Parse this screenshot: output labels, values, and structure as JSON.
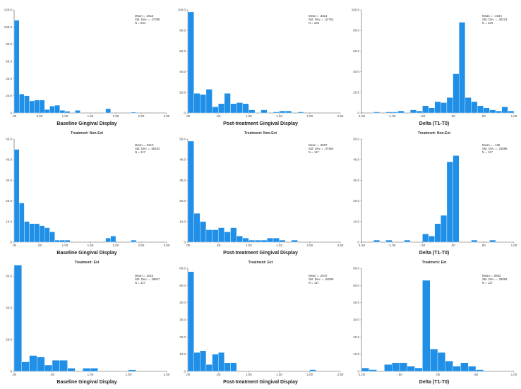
{
  "chart_data": [
    {
      "type": "bar",
      "title": "",
      "xlabel": "Baseline Gingival Display",
      "ylabel": "",
      "xlim": [
        0,
        3.0
      ],
      "ylim": [
        0,
        120
      ],
      "xticks": [
        ".00",
        "0.50",
        "1.00",
        "1.50",
        "2.00",
        "2.50",
        "3.00"
      ],
      "yticks": [
        "0",
        "20.0",
        "40.0",
        "60.0",
        "80.0",
        "100.0",
        "120.0"
      ],
      "stats": [
        "Mean = .3515",
        "Std. Dev. = .47295",
        "N = 234"
      ],
      "bin_width": 0.1,
      "values": [
        108,
        22,
        20,
        14,
        15,
        15,
        4,
        8,
        9,
        3,
        2,
        0,
        3,
        0,
        0,
        0,
        0,
        0,
        5,
        0,
        0,
        0,
        0,
        1,
        0,
        0,
        0,
        0,
        0,
        0
      ]
    },
    {
      "type": "bar",
      "title": "",
      "xlabel": "Post-treatment Gingival Display",
      "ylabel": "",
      "xlim": [
        0,
        2.5
      ],
      "ylim": [
        0,
        100
      ],
      "xticks": [
        ".00",
        ".50",
        "1.00",
        "1.50",
        "2.00",
        "2.50"
      ],
      "yticks": [
        "0",
        "20.0",
        "40.0",
        "60.0",
        "80.0",
        "100.0"
      ],
      "stats": [
        "Mean = .3321",
        "Std. Dev. = .41752",
        "N = 234"
      ],
      "bin_width": 0.1,
      "values": [
        98,
        19,
        18,
        23,
        6,
        9,
        19,
        9,
        10,
        9,
        3,
        0,
        3,
        0,
        1,
        2,
        2,
        0,
        1,
        0,
        0,
        0,
        0,
        0,
        0
      ]
    },
    {
      "type": "bar",
      "title": "",
      "xlabel": "Delta (T1-T0)",
      "ylabel": "",
      "xlim": [
        -1.5,
        1.0
      ],
      "ylim": [
        0,
        100
      ],
      "xticks": [
        "-1.50",
        "-1.00",
        "-.50",
        ".00",
        ".50",
        "1.00"
      ],
      "yticks": [
        "0",
        "20.0",
        "40.0",
        "60.0",
        "80.0",
        "100.0"
      ],
      "stats": [
        "Mean = -.0194",
        "Std. Dev. = .30223",
        "N = 234"
      ],
      "bin_width": 0.1,
      "values": [
        0,
        0,
        1,
        0,
        1,
        1,
        2,
        0,
        3,
        2,
        7,
        5,
        11,
        10,
        15,
        38,
        88,
        15,
        11,
        7,
        5,
        3,
        2,
        6,
        2
      ]
    },
    {
      "type": "bar",
      "title": "Treatment: Non-Ext",
      "xlabel": "Baseline Gingival Display",
      "ylabel": "",
      "xlim": [
        0,
        3.0
      ],
      "ylim": [
        0,
        50
      ],
      "xticks": [
        ".00",
        ".50",
        "1.00",
        "1.50",
        "2.00",
        "2.50",
        "3.00"
      ],
      "yticks": [
        "0",
        "10.0",
        "20.0",
        "30.0",
        "40.0",
        "50.0"
      ],
      "stats": [
        "Mean = .5210",
        "Std. Dev. = .56234",
        "N = 117"
      ],
      "bin_width": 0.1,
      "values": [
        45,
        19,
        10,
        9,
        9,
        8,
        7,
        5,
        1,
        1,
        1,
        0,
        0,
        0,
        0,
        0,
        0,
        0,
        2,
        3,
        0,
        0,
        0,
        1,
        0,
        0,
        0,
        0,
        0,
        0
      ]
    },
    {
      "type": "bar",
      "title": "Treatment: Non-Ext",
      "xlabel": "Post-treatment Gingival Display",
      "ylabel": "",
      "xlim": [
        0,
        2.5
      ],
      "ylim": [
        0,
        50
      ],
      "xticks": [
        ".00",
        ".50",
        "1.00",
        "1.50",
        "2.00",
        "2.50"
      ],
      "yticks": [
        "0",
        "10.0",
        "20.0",
        "30.0",
        "40.0",
        "50.0"
      ],
      "stats": [
        "Mean = .3967",
        "Std. Dev. = .47464",
        "N = 117"
      ],
      "bin_width": 0.1,
      "values": [
        49,
        14,
        10,
        6,
        6,
        7,
        5,
        7,
        3,
        2,
        1,
        1,
        1,
        2,
        2,
        1,
        0,
        1,
        0,
        0,
        0,
        0,
        0,
        0,
        0
      ]
    },
    {
      "type": "bar",
      "title": "Treatment: Non-Ext",
      "xlabel": "Delta (T1-T0)",
      "ylabel": "",
      "xlim": [
        -1.5,
        1.0
      ],
      "ylim": [
        0,
        50
      ],
      "xticks": [
        "-1.50",
        "-1.00",
        "-.50",
        ".00",
        ".50",
        "1.00"
      ],
      "yticks": [
        "0",
        "10.0",
        "20.0",
        "30.0",
        "40.0",
        "50.0"
      ],
      "stats": [
        "Mean = -.165",
        "Std. Dev. = .23086",
        "N = 117"
      ],
      "bin_width": 0.1,
      "values": [
        0,
        0,
        1,
        0,
        1,
        0,
        0,
        1,
        0,
        0,
        4,
        3,
        9,
        13,
        39,
        42,
        0,
        0,
        1,
        0,
        0,
        1,
        0,
        0,
        0
      ]
    },
    {
      "type": "bar",
      "title": "Treatment: Ext",
      "xlabel": "Baseline Gingival Display",
      "ylabel": "",
      "xlim": [
        0,
        2.0
      ],
      "ylim": [
        0,
        65
      ],
      "xticks": [
        ".00",
        ".50",
        "1.00",
        "1.50",
        "2.00"
      ],
      "yticks": [
        "0",
        "20.0",
        "40.0",
        "60.0"
      ],
      "stats": [
        "Mean = .2014",
        "Std. Dev. = .29607",
        "N = 117"
      ],
      "bin_width": 0.1,
      "values": [
        67,
        6,
        10,
        9,
        4,
        7,
        7,
        2,
        0,
        2,
        2,
        0,
        0,
        0,
        0,
        1,
        0,
        0,
        0,
        0
      ]
    },
    {
      "type": "bar",
      "title": "Treatment: Ext",
      "xlabel": "Post-treatment Gingival Display",
      "ylabel": "",
      "xlim": [
        0,
        2.5
      ],
      "ylim": [
        0,
        60
      ],
      "xticks": [
        ".00",
        ".50",
        "1.00",
        "1.50",
        "2.00",
        "2.50"
      ],
      "yticks": [
        "0",
        "10.0",
        "20.0",
        "30.0",
        "40.0",
        "50.0",
        "60.0"
      ],
      "stats": [
        "Mean = .2670",
        "Std. Dev. = .34699",
        "N = 117"
      ],
      "bin_width": 0.1,
      "values": [
        58,
        11,
        12,
        4,
        10,
        11,
        5,
        5,
        0,
        0,
        0,
        0,
        0,
        0,
        0,
        0,
        0,
        0,
        0,
        0,
        1,
        0,
        0,
        0,
        0
      ]
    },
    {
      "type": "bar",
      "title": "Treatment: Ext",
      "xlabel": "Delta (T1-T0)",
      "ylabel": "",
      "xlim": [
        -1.0,
        1.0
      ],
      "ylim": [
        0,
        60
      ],
      "xticks": [
        "-1.00",
        "-.50",
        ".00",
        ".50",
        "1.00"
      ],
      "yticks": [
        "0",
        "10.0",
        "20.0",
        "30.0",
        "40.0",
        "50.0",
        "60.0"
      ],
      "stats": [
        "Mean = .0662",
        "Std. Dev. = .33069",
        "N = 117"
      ],
      "bin_width": 0.1,
      "values": [
        2,
        1,
        0,
        4,
        5,
        5,
        3,
        2,
        53,
        13,
        11,
        6,
        3,
        5,
        3,
        1,
        0,
        0,
        0,
        0
      ]
    }
  ],
  "colors": {
    "bar_fill": "#1f8fe8",
    "bar_stroke": "#ffffff",
    "axis": "#555555",
    "text": "#222222"
  }
}
